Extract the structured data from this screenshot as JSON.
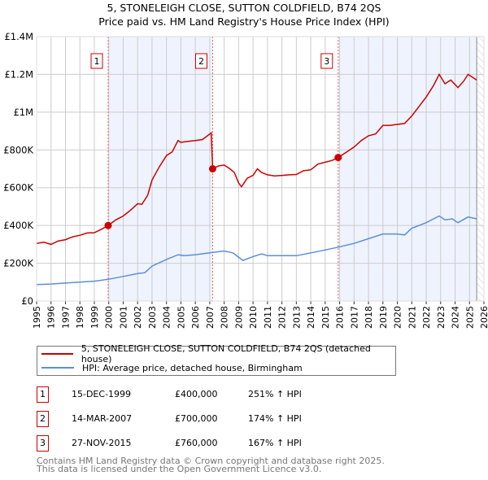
{
  "title": "5, STONELEIGH CLOSE, SUTTON COLDFIELD, B74 2QS",
  "subtitle": "Price paid vs. HM Land Registry's House Price Index (HPI)",
  "chart_data": {
    "type": "line",
    "title": "5, STONELEIGH CLOSE, SUTTON COLDFIELD, B74 2QS",
    "subtitle": "Price paid vs. HM Land Registry's House Price Index (HPI)",
    "xlim": [
      1995,
      2026
    ],
    "ylim": [
      0,
      1400000
    ],
    "x_ticks": [
      "1995",
      "1996",
      "1997",
      "1998",
      "1999",
      "2000",
      "2001",
      "2002",
      "2003",
      "2004",
      "2005",
      "2006",
      "2007",
      "2008",
      "2009",
      "2010",
      "2011",
      "2012",
      "2013",
      "2014",
      "2015",
      "2016",
      "2017",
      "2018",
      "2019",
      "2020",
      "2021",
      "2022",
      "2023",
      "2024",
      "2025",
      "2026"
    ],
    "y_ticks": [
      {
        "v": 0,
        "label": "£0"
      },
      {
        "v": 200000,
        "label": "£200K"
      },
      {
        "v": 400000,
        "label": "£400K"
      },
      {
        "v": 600000,
        "label": "£600K"
      },
      {
        "v": 800000,
        "label": "£800K"
      },
      {
        "v": 1000000,
        "label": "£1M"
      },
      {
        "v": 1200000,
        "label": "£1.2M"
      },
      {
        "v": 1400000,
        "label": "£1.4M"
      }
    ],
    "grid": true,
    "shaded_periods": [
      [
        1999.96,
        2007.2
      ],
      [
        2015.9,
        2025.5
      ]
    ],
    "hatched_from": 2025.5,
    "series": [
      {
        "name": "5, STONELEIGH CLOSE, SUTTON COLDFIELD, B74 2QS (detached house)",
        "color": "#cc0000",
        "x": [
          1995,
          1995.5,
          1996,
          1996.5,
          1997,
          1997.5,
          1998,
          1998.5,
          1999,
          1999.5,
          1999.96,
          2000.5,
          2001,
          2001.5,
          2002,
          2002.3,
          2002.7,
          2003,
          2003.5,
          2004,
          2004.4,
          2004.8,
          2005,
          2005.5,
          2006,
          2006.5,
          2007.1,
          2007.2,
          2007.6,
          2008,
          2008.4,
          2008.7,
          2009,
          2009.2,
          2009.6,
          2010,
          2010.3,
          2010.6,
          2011,
          2011.5,
          2012,
          2012.5,
          2013,
          2013.5,
          2014,
          2014.5,
          2015,
          2015.5,
          2015.9,
          2016.5,
          2017,
          2017.5,
          2018,
          2018.5,
          2019,
          2019.5,
          2020,
          2020.5,
          2021,
          2021.5,
          2022,
          2022.5,
          2022.9,
          2023.3,
          2023.7,
          2024.2,
          2024.6,
          2024.9,
          2025.2,
          2025.5
        ],
        "y": [
          305000,
          312000,
          300000,
          318000,
          325000,
          340000,
          348000,
          360000,
          362000,
          380000,
          400000,
          430000,
          450000,
          480000,
          515000,
          512000,
          560000,
          640000,
          710000,
          770000,
          790000,
          850000,
          840000,
          845000,
          850000,
          855000,
          890000,
          700000,
          715000,
          720000,
          700000,
          680000,
          625000,
          605000,
          650000,
          665000,
          700000,
          680000,
          668000,
          662000,
          665000,
          668000,
          670000,
          690000,
          695000,
          725000,
          735000,
          745000,
          760000,
          790000,
          815000,
          850000,
          875000,
          885000,
          930000,
          930000,
          935000,
          940000,
          980000,
          1030000,
          1080000,
          1140000,
          1200000,
          1150000,
          1170000,
          1130000,
          1165000,
          1200000,
          1185000,
          1170000
        ]
      },
      {
        "name": "HPI: Average price, detached house, Birmingham",
        "color": "#5b8fd6",
        "x": [
          1995,
          1996,
          1997,
          1998,
          1999,
          1999.96,
          2001,
          2002,
          2002.5,
          2003,
          2004,
          2004.8,
          2005.2,
          2006,
          2007,
          2008,
          2008.6,
          2009.3,
          2010,
          2010.6,
          2011,
          2012,
          2013,
          2014,
          2015,
          2015.9,
          2017,
          2018,
          2019,
          2020,
          2020.5,
          2021,
          2022,
          2022.9,
          2023.3,
          2023.8,
          2024.2,
          2024.9,
          2025.5
        ],
        "y": [
          87000,
          90000,
          95000,
          100000,
          105000,
          115000,
          130000,
          145000,
          150000,
          185000,
          220000,
          245000,
          240000,
          245000,
          255000,
          265000,
          255000,
          215000,
          235000,
          250000,
          240000,
          240000,
          240000,
          255000,
          270000,
          285000,
          305000,
          330000,
          355000,
          355000,
          350000,
          385000,
          415000,
          450000,
          430000,
          435000,
          415000,
          445000,
          435000
        ]
      }
    ],
    "markers": [
      {
        "label": "1",
        "x": 1999.96,
        "y": 400000
      },
      {
        "label": "2",
        "x": 2007.2,
        "y": 700000
      },
      {
        "label": "3",
        "x": 2015.9,
        "y": 760000
      }
    ]
  },
  "legend": [
    {
      "label": "5, STONELEIGH CLOSE, SUTTON COLDFIELD, B74 2QS (detached house)",
      "color": "#cc0000"
    },
    {
      "label": "HPI: Average price, detached house, Birmingham",
      "color": "#5b8fd6"
    }
  ],
  "transactions": [
    {
      "num": "1",
      "date": "15-DEC-1999",
      "price": "£400,000",
      "hpi": "251% ↑ HPI"
    },
    {
      "num": "2",
      "date": "14-MAR-2007",
      "price": "£700,000",
      "hpi": "174% ↑ HPI"
    },
    {
      "num": "3",
      "date": "27-NOV-2015",
      "price": "£760,000",
      "hpi": "167% ↑ HPI"
    }
  ],
  "footer": [
    "Contains HM Land Registry data © Crown copyright and database right 2025.",
    "This data is licensed under the Open Government Licence v3.0."
  ]
}
